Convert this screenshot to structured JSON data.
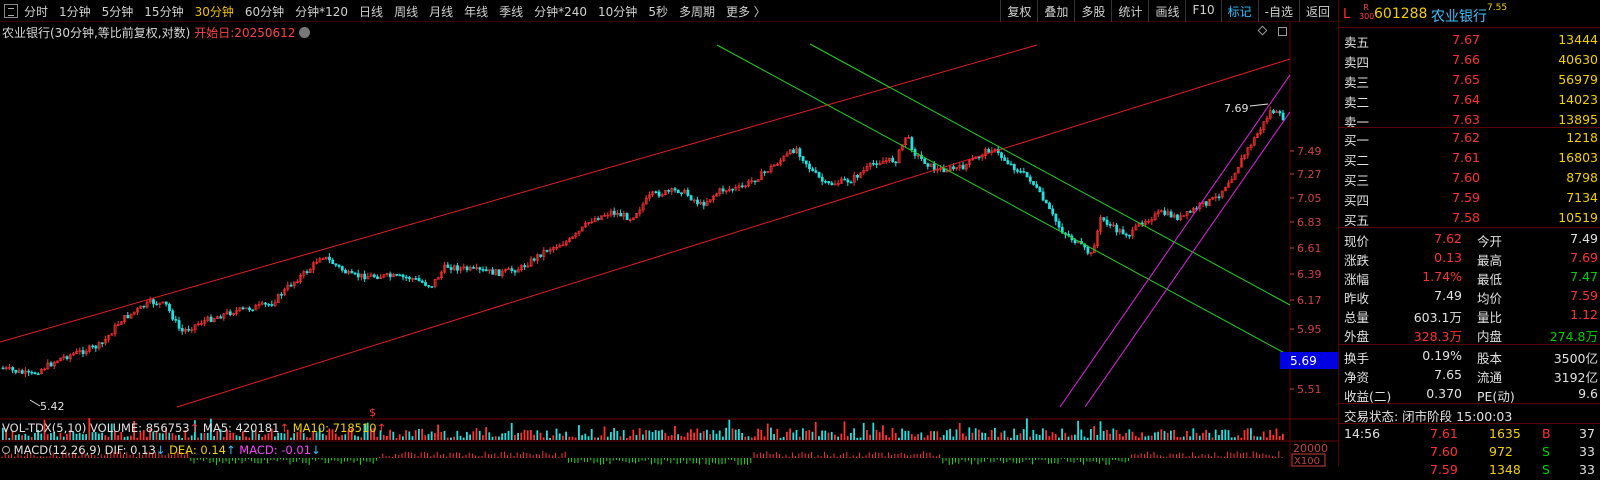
{
  "toolbar": {
    "periods": [
      "分时",
      "1分钟",
      "5分钟",
      "15分钟",
      "30分钟",
      "60分钟",
      "分钟*120",
      "日线",
      "周线",
      "月线",
      "年线",
      "季线",
      "分钟*240",
      "10分钟",
      "5秒",
      "多周期",
      "更多 〉"
    ],
    "active_period": "30分钟",
    "tools": [
      "复权",
      "叠加",
      "多股",
      "统计",
      "画线",
      "F10",
      "标记",
      "-自选",
      "返回"
    ],
    "active_tool": "标记"
  },
  "chart": {
    "title": "农业银行(30分钟,等比前复权,对数)",
    "start_label": "开始日:20250612",
    "axis_labels": [
      "7.49",
      "7.27",
      "7.05",
      "6.83",
      "6.61",
      "6.39",
      "6.17",
      "5.95",
      "5.51"
    ],
    "current_marker": "5.69",
    "high_label": "7.69",
    "low_label": "5.42",
    "event_marker": "$"
  },
  "chart_data": {
    "type": "candlestick",
    "title": "农业银行(30分钟,等比前复权,对数)",
    "y_scale": "log",
    "y_ticks": [
      5.51,
      5.95,
      6.17,
      6.39,
      6.61,
      6.83,
      7.05,
      7.27,
      7.49
    ],
    "high": 7.69,
    "low": 5.42,
    "trend_lines": [
      "red upper channel",
      "red lower channel",
      "green upper channel",
      "green lower channel",
      "magenta upper channel",
      "magenta lower channel"
    ]
  },
  "volume": {
    "name": "VOL-TDX(5,10)",
    "volume_label": "VOLUME: 856753",
    "ma5_label": "MA5: 420181",
    "ma10_label": "MA10: 718510",
    "axis_label": "20000",
    "unit": "X100"
  },
  "macd": {
    "name": "MACD(12,26,9)",
    "dif_label": "DIF: 0.13",
    "dea_label": "DEA: 0.14",
    "macd_label": "MACD: -0.01"
  },
  "panel": {
    "market_flag": "L",
    "index_tag": "R 300",
    "code": "601288",
    "name": "农业银行",
    "sup_price": "7.55",
    "asks": [
      {
        "label": "卖五",
        "price": "7.67",
        "vol": "13444"
      },
      {
        "label": "卖四",
        "price": "7.66",
        "vol": "40630"
      },
      {
        "label": "卖三",
        "price": "7.65",
        "vol": "56979"
      },
      {
        "label": "卖二",
        "price": "7.64",
        "vol": "14023"
      },
      {
        "label": "卖一",
        "price": "7.63",
        "vol": "13895"
      }
    ],
    "bids": [
      {
        "label": "买一",
        "price": "7.62",
        "vol": "1218"
      },
      {
        "label": "买二",
        "price": "7.61",
        "vol": "16803"
      },
      {
        "label": "买三",
        "price": "7.60",
        "vol": "8798"
      },
      {
        "label": "买四",
        "price": "7.59",
        "vol": "7134"
      },
      {
        "label": "买五",
        "price": "7.58",
        "vol": "10519"
      }
    ],
    "stats": [
      {
        "k1": "现价",
        "v1": "7.62",
        "k2": "今开",
        "v2": "7.49"
      },
      {
        "k1": "涨跌",
        "v1": "0.13",
        "k2": "最高",
        "v2": "7.69"
      },
      {
        "k1": "涨幅",
        "v1": "1.74%",
        "k2": "最低",
        "v2": "7.47"
      },
      {
        "k1": "昨收",
        "v1": "7.49",
        "k2": "均价",
        "v2": "7.59"
      },
      {
        "k1": "总量",
        "v1": "603.1万",
        "k2": "量比",
        "v2": "1.12"
      },
      {
        "k1": "外盘",
        "v1": "328.3万",
        "k2": "内盘",
        "v2": "274.8万"
      }
    ],
    "stats2": [
      {
        "k1": "换手",
        "v1": "0.19%",
        "k2": "股本",
        "v2": "3500亿"
      },
      {
        "k1": "净资",
        "v1": "7.65",
        "k2": "流通",
        "v2": "3192亿"
      },
      {
        "k1": "收益(二)",
        "v1": "0.370",
        "k2": "PE(动)",
        "v2": "9.6"
      }
    ],
    "status": "交易状态: 闭市阶段 15:00:03",
    "ticks": [
      {
        "time": "14:56",
        "price": "7.61",
        "vol": "1635",
        "side": "B",
        "num": "37"
      },
      {
        "time": "",
        "price": "7.60",
        "vol": "972",
        "side": "S",
        "num": "33"
      },
      {
        "time": "",
        "price": "7.59",
        "vol": "1348",
        "side": "S",
        "num": "33"
      }
    ],
    "colors": {
      "up": "#ff3030",
      "down": "#00d000",
      "neutral": "#e0e0e0",
      "yellow": "#f0d000"
    }
  }
}
